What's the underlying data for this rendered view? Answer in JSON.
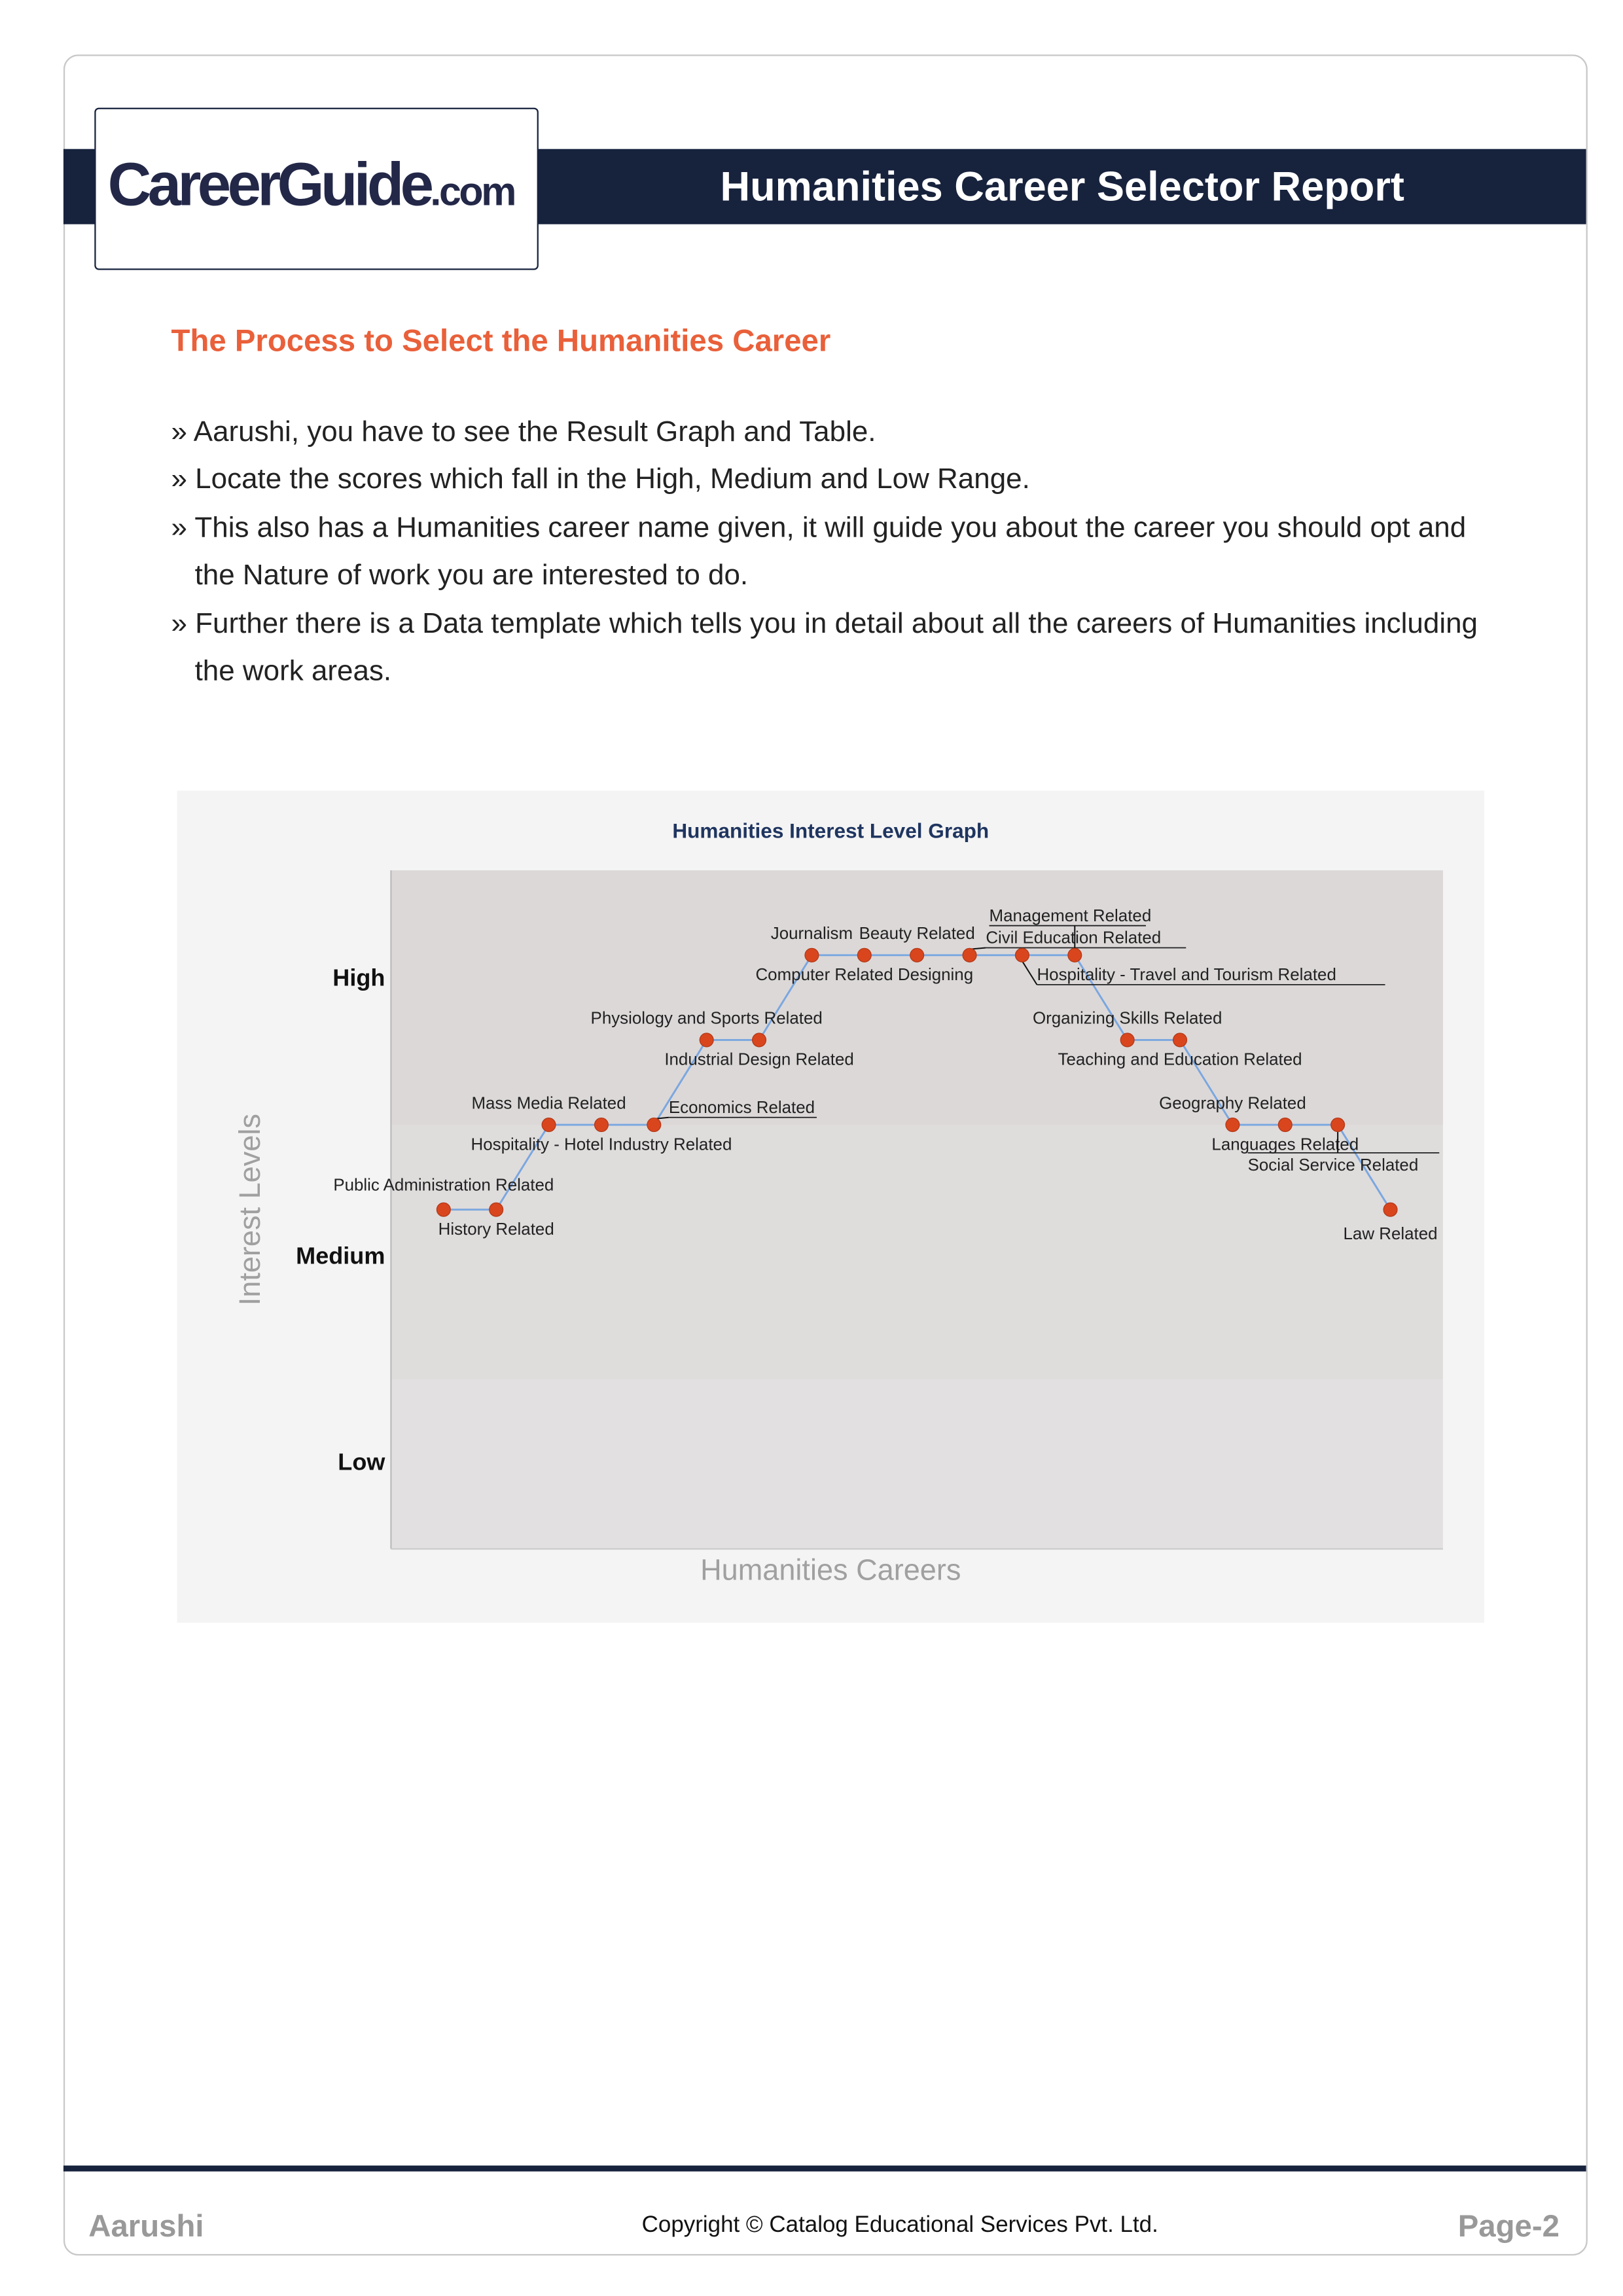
{
  "header": {
    "logo": "CareerGuide",
    "logo_suffix": ".com",
    "title": "Humanities Career Selector Report"
  },
  "section_title": "The Process to Select the Humanities Career",
  "bullets": [
    "» Aarushi, you have to see the Result Graph and Table.",
    "» Locate the scores which fall in the High, Medium and Low Range.",
    "» This also has a Humanities career name given, it will guide you about the career you should opt and the Nature of work you are interested to do.",
    "» Further there is a Data template which tells you in detail about all the careers of Humanities including the work areas."
  ],
  "chart_data": {
    "type": "line",
    "title": "Humanities Interest Level Graph",
    "xlabel": "Humanities Careers",
    "ylabel": "Interest Levels",
    "y_bands": [
      {
        "label": "Low",
        "range": [
          2,
          4
        ]
      },
      {
        "label": "Medium",
        "range": [
          4,
          7
        ]
      },
      {
        "label": "High",
        "range": [
          7,
          10
        ]
      }
    ],
    "ylim": [
      2,
      10
    ],
    "colors": {
      "point": "#d9461e",
      "line": "#7aa7e0",
      "high_band": "#dcd8d8",
      "medium_band": "#dfdcdc",
      "low_band": "#e2e0e0"
    },
    "points": [
      {
        "label": "Public Administration Related",
        "value": 6
      },
      {
        "label": "History Related",
        "value": 6
      },
      {
        "label": "Mass Media Related",
        "value": 7
      },
      {
        "label": "Hospitality - Hotel Industry Related",
        "value": 7
      },
      {
        "label": "Economics Related",
        "value": 7
      },
      {
        "label": "Physiology and Sports Related",
        "value": 8
      },
      {
        "label": "Industrial Design Related",
        "value": 8
      },
      {
        "label": "Journalism",
        "value": 9
      },
      {
        "label": "Computer Related Designing",
        "value": 9
      },
      {
        "label": "Beauty Related",
        "value": 9
      },
      {
        "label": "Civil Education Related",
        "value": 9
      },
      {
        "label": "Hospitality - Travel and Tourism Related",
        "value": 9
      },
      {
        "label": "Management Related",
        "value": 9
      },
      {
        "label": "Organizing Skills Related",
        "value": 8
      },
      {
        "label": "Teaching and Education Related",
        "value": 8
      },
      {
        "label": "Geography Related",
        "value": 7
      },
      {
        "label": "Languages Related",
        "value": 7
      },
      {
        "label": "Social Service Related",
        "value": 7
      },
      {
        "label": "Law Related",
        "value": 6
      }
    ]
  },
  "footer": {
    "name": "Aarushi",
    "copyright": "Copyright © Catalog Educational Services Pvt. Ltd.",
    "page": "Page-2"
  }
}
